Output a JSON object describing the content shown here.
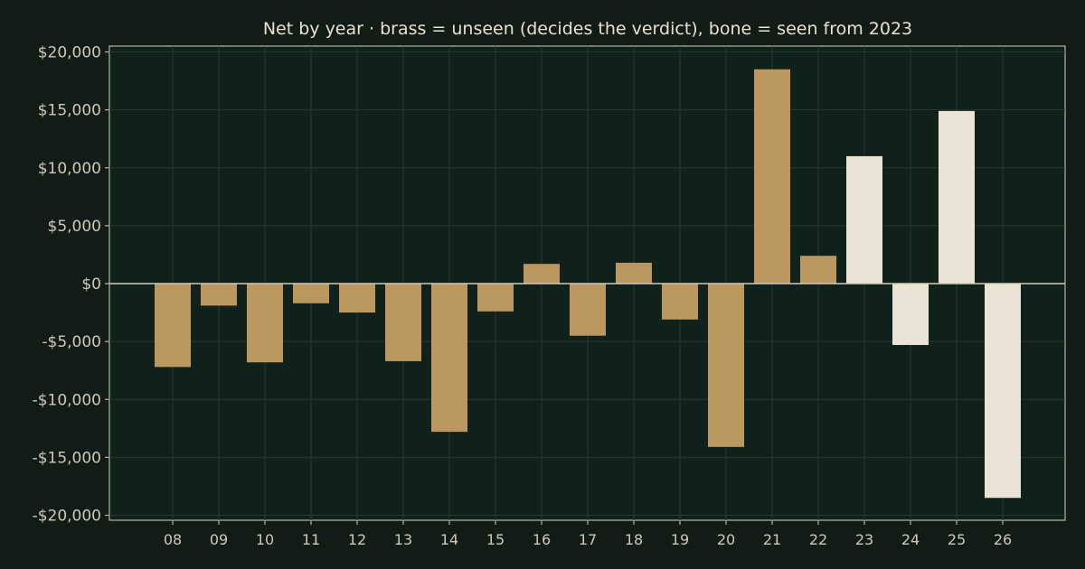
{
  "chart_data": {
    "type": "bar",
    "title": "Net by year  ·  brass = unseen (decides the verdict), bone = seen from 2023",
    "xlabel": "",
    "ylabel": "",
    "categories": [
      "08",
      "09",
      "10",
      "11",
      "12",
      "13",
      "14",
      "15",
      "16",
      "17",
      "18",
      "19",
      "20",
      "21",
      "22",
      "23",
      "24",
      "25",
      "26"
    ],
    "values": [
      -7200,
      -1900,
      -6800,
      -1700,
      -2500,
      -6700,
      -12800,
      -2400,
      1700,
      -4500,
      1800,
      -3100,
      -14100,
      18500,
      2400,
      11000,
      -5300,
      14900,
      -18500
    ],
    "groups": [
      "unseen",
      "unseen",
      "unseen",
      "unseen",
      "unseen",
      "unseen",
      "unseen",
      "unseen",
      "unseen",
      "unseen",
      "unseen",
      "unseen",
      "unseen",
      "unseen",
      "unseen",
      "seen",
      "seen",
      "seen",
      "seen"
    ],
    "group_colors": {
      "unseen": "#bb985f",
      "seen": "#ebe4d4"
    },
    "ylim": [
      -20000,
      20000
    ],
    "yticks": [
      20000,
      15000,
      10000,
      5000,
      0,
      -5000,
      -10000,
      -15000,
      -20000
    ],
    "ytick_labels": [
      "$20,000",
      "$15,000",
      "$10,000",
      "$5,000",
      "$0",
      "-$5,000",
      "-$10,000",
      "-$15,000",
      "-$20,000"
    ],
    "grid": true,
    "legend": "none"
  },
  "colors": {
    "background": "#111c17",
    "plot_background": "#10201a",
    "axis": "#b9b4a4",
    "grid": "#2a3a32",
    "zero_line": "#cfc9b8"
  }
}
